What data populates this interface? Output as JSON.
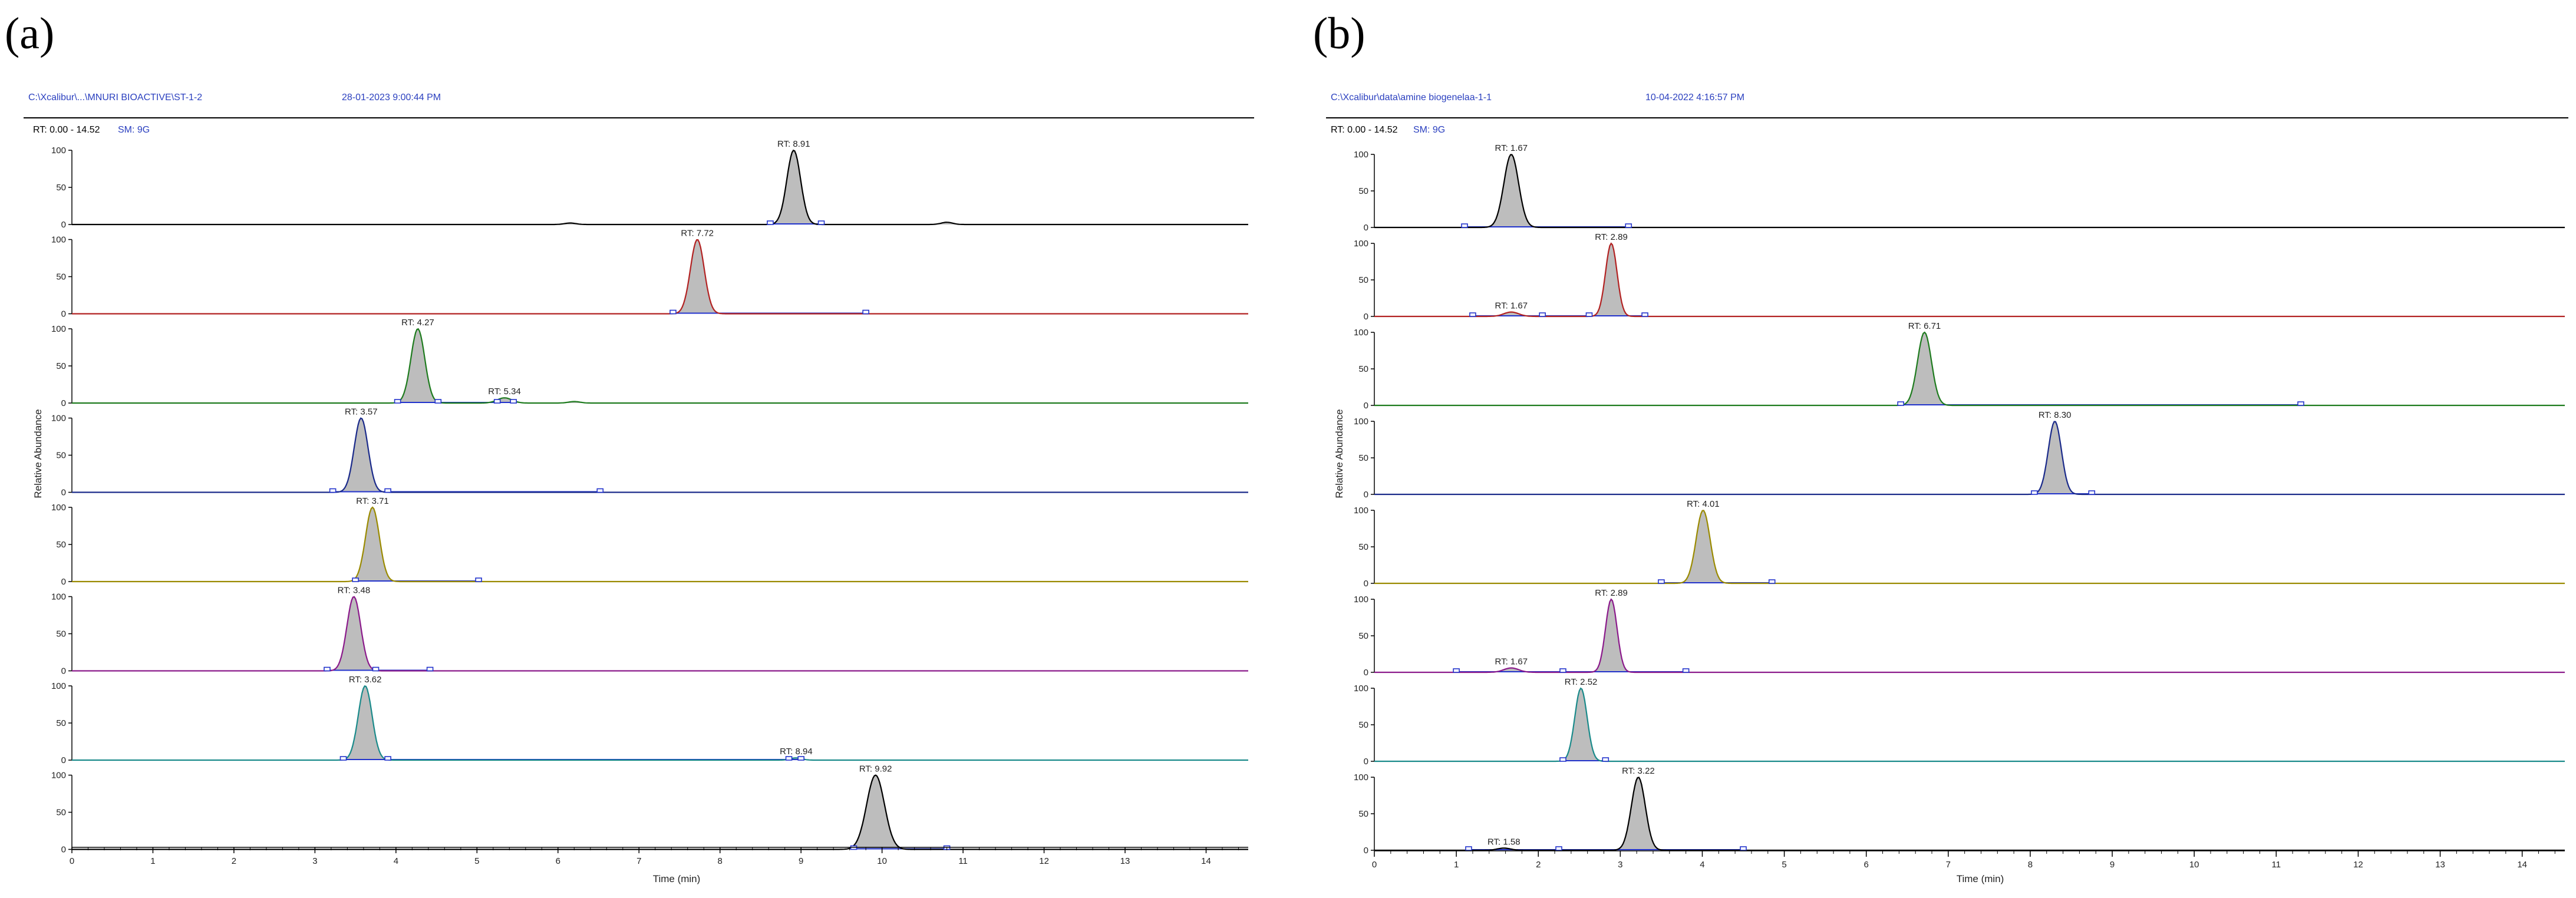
{
  "figure": {
    "panels": [
      {
        "letter": "(a)",
        "file_path": "C:\\Xcalibur\\...\\MNURI BIOACTIVE\\ST-1-2",
        "timestamp": "28-01-2023 9:00:44 PM",
        "range_label": "RT: 0.00 - 14.52",
        "smoothing_label": "SM: 9G",
        "ylabel": "Relative Abundance",
        "xlabel": "Time (min)"
      },
      {
        "letter": "(b)",
        "file_path": "C:\\Xcalibur\\data\\amine biogenelaa-1-1",
        "timestamp": "10-04-2022 4:16:57 PM",
        "range_label": "RT: 0.00 - 14.52",
        "smoothing_label": "SM: 9G",
        "ylabel": "Relative Abundance",
        "xlabel": "Time (min)"
      }
    ]
  },
  "chart_data": [
    {
      "type": "line",
      "title": "(a)",
      "xlabel": "Time (min)",
      "ylabel": "Relative Abundance",
      "xlim": [
        0,
        14.52
      ],
      "ylim": [
        0,
        100
      ],
      "x_ticks": [
        "0",
        "1",
        "2",
        "3",
        "4",
        "5",
        "6",
        "7",
        "8",
        "9",
        "10",
        "11",
        "12",
        "13",
        "14"
      ],
      "y_ticks": [
        "0",
        "50",
        "100"
      ],
      "grid": false,
      "series": [
        {
          "name": "trace-1",
          "color": "#000000",
          "peaks": [
            {
              "rt": 8.91,
              "height": 100,
              "width": 0.085,
              "label": "RT: 8.91"
            },
            {
              "rt": 6.15,
              "height": 2,
              "width": 0.07,
              "label": ""
            },
            {
              "rt": 10.8,
              "height": 3,
              "width": 0.07,
              "label": ""
            }
          ],
          "markers": [
            8.62,
            9.25
          ]
        },
        {
          "name": "trace-2",
          "color": "#b22222",
          "peaks": [
            {
              "rt": 7.72,
              "height": 100,
              "width": 0.085,
              "label": "RT: 7.72"
            }
          ],
          "markers": [
            7.42,
            9.8
          ]
        },
        {
          "name": "trace-3",
          "color": "#1e7b1e",
          "peaks": [
            {
              "rt": 4.27,
              "height": 100,
              "width": 0.085,
              "label": "RT: 4.27"
            },
            {
              "rt": 5.34,
              "height": 7,
              "width": 0.09,
              "label": "RT: 5.34"
            },
            {
              "rt": 6.2,
              "height": 2,
              "width": 0.07,
              "label": ""
            }
          ],
          "markers": [
            4.02,
            4.52,
            5.25,
            5.45
          ]
        },
        {
          "name": "trace-4",
          "color": "#1a2a8a",
          "peaks": [
            {
              "rt": 3.57,
              "height": 100,
              "width": 0.085,
              "label": "RT: 3.57"
            }
          ],
          "markers": [
            3.22,
            3.9,
            6.52
          ]
        },
        {
          "name": "trace-5",
          "color": "#9a8a00",
          "peaks": [
            {
              "rt": 3.71,
              "height": 100,
              "width": 0.085,
              "label": "RT: 3.71"
            }
          ],
          "markers": [
            3.5,
            5.02
          ]
        },
        {
          "name": "trace-6",
          "color": "#8b1a8b",
          "peaks": [
            {
              "rt": 3.48,
              "height": 100,
              "width": 0.085,
              "label": "RT: 3.48"
            }
          ],
          "markers": [
            3.15,
            3.75,
            4.42
          ]
        },
        {
          "name": "trace-7",
          "color": "#1a8a8a",
          "peaks": [
            {
              "rt": 3.62,
              "height": 100,
              "width": 0.085,
              "label": "RT: 3.62"
            },
            {
              "rt": 8.94,
              "height": 3,
              "width": 0.07,
              "label": "RT: 8.94"
            }
          ],
          "markers": [
            3.35,
            3.9,
            8.85,
            9.0
          ]
        },
        {
          "name": "trace-8",
          "color": "#000000",
          "peaks": [
            {
              "rt": 9.92,
              "height": 100,
              "width": 0.11,
              "label": "RT: 9.92"
            }
          ],
          "markers": [
            9.65,
            10.8
          ]
        }
      ]
    },
    {
      "type": "line",
      "title": "(b)",
      "xlabel": "Time (min)",
      "ylabel": "Relative Abundance",
      "xlim": [
        0,
        14.52
      ],
      "ylim": [
        0,
        100
      ],
      "x_ticks": [
        "0",
        "1",
        "2",
        "3",
        "4",
        "5",
        "6",
        "7",
        "8",
        "9",
        "10",
        "11",
        "12",
        "13",
        "14"
      ],
      "y_ticks": [
        "0",
        "50",
        "100"
      ],
      "grid": false,
      "series": [
        {
          "name": "trace-1",
          "color": "#000000",
          "peaks": [
            {
              "rt": 1.67,
              "height": 100,
              "width": 0.09,
              "label": "RT: 1.67"
            }
          ],
          "markers": [
            1.1,
            3.1
          ]
        },
        {
          "name": "trace-2",
          "color": "#b22222",
          "peaks": [
            {
              "rt": 2.89,
              "height": 100,
              "width": 0.07,
              "label": "RT: 2.89"
            },
            {
              "rt": 1.67,
              "height": 6,
              "width": 0.09,
              "label": "RT: 1.67"
            }
          ],
          "markers": [
            1.2,
            2.05,
            2.62,
            3.3
          ]
        },
        {
          "name": "trace-3",
          "color": "#1e7b1e",
          "peaks": [
            {
              "rt": 6.71,
              "height": 100,
              "width": 0.085,
              "label": "RT: 6.71"
            }
          ],
          "markers": [
            6.42,
            11.3
          ]
        },
        {
          "name": "trace-4",
          "color": "#1a2a8a",
          "peaks": [
            {
              "rt": 8.3,
              "height": 100,
              "width": 0.08,
              "label": "RT: 8.30"
            }
          ],
          "markers": [
            8.05,
            8.75
          ]
        },
        {
          "name": "trace-5",
          "color": "#9a8a00",
          "peaks": [
            {
              "rt": 4.01,
              "height": 100,
              "width": 0.085,
              "label": "RT: 4.01"
            }
          ],
          "markers": [
            3.5,
            4.85
          ]
        },
        {
          "name": "trace-6",
          "color": "#8b1a8b",
          "peaks": [
            {
              "rt": 2.89,
              "height": 100,
              "width": 0.07,
              "label": "RT: 2.89"
            },
            {
              "rt": 1.67,
              "height": 6,
              "width": 0.09,
              "label": "RT: 1.67"
            }
          ],
          "markers": [
            1.0,
            2.3,
            3.8
          ]
        },
        {
          "name": "trace-7",
          "color": "#1a8a8a",
          "peaks": [
            {
              "rt": 2.52,
              "height": 100,
              "width": 0.075,
              "label": "RT: 2.52"
            }
          ],
          "markers": [
            2.3,
            2.82
          ]
        },
        {
          "name": "trace-8",
          "color": "#000000",
          "peaks": [
            {
              "rt": 3.22,
              "height": 100,
              "width": 0.085,
              "label": "RT: 3.22"
            },
            {
              "rt": 1.58,
              "height": 3,
              "width": 0.08,
              "label": "RT: 1.58"
            }
          ],
          "markers": [
            1.15,
            2.25,
            4.5
          ]
        }
      ]
    }
  ]
}
